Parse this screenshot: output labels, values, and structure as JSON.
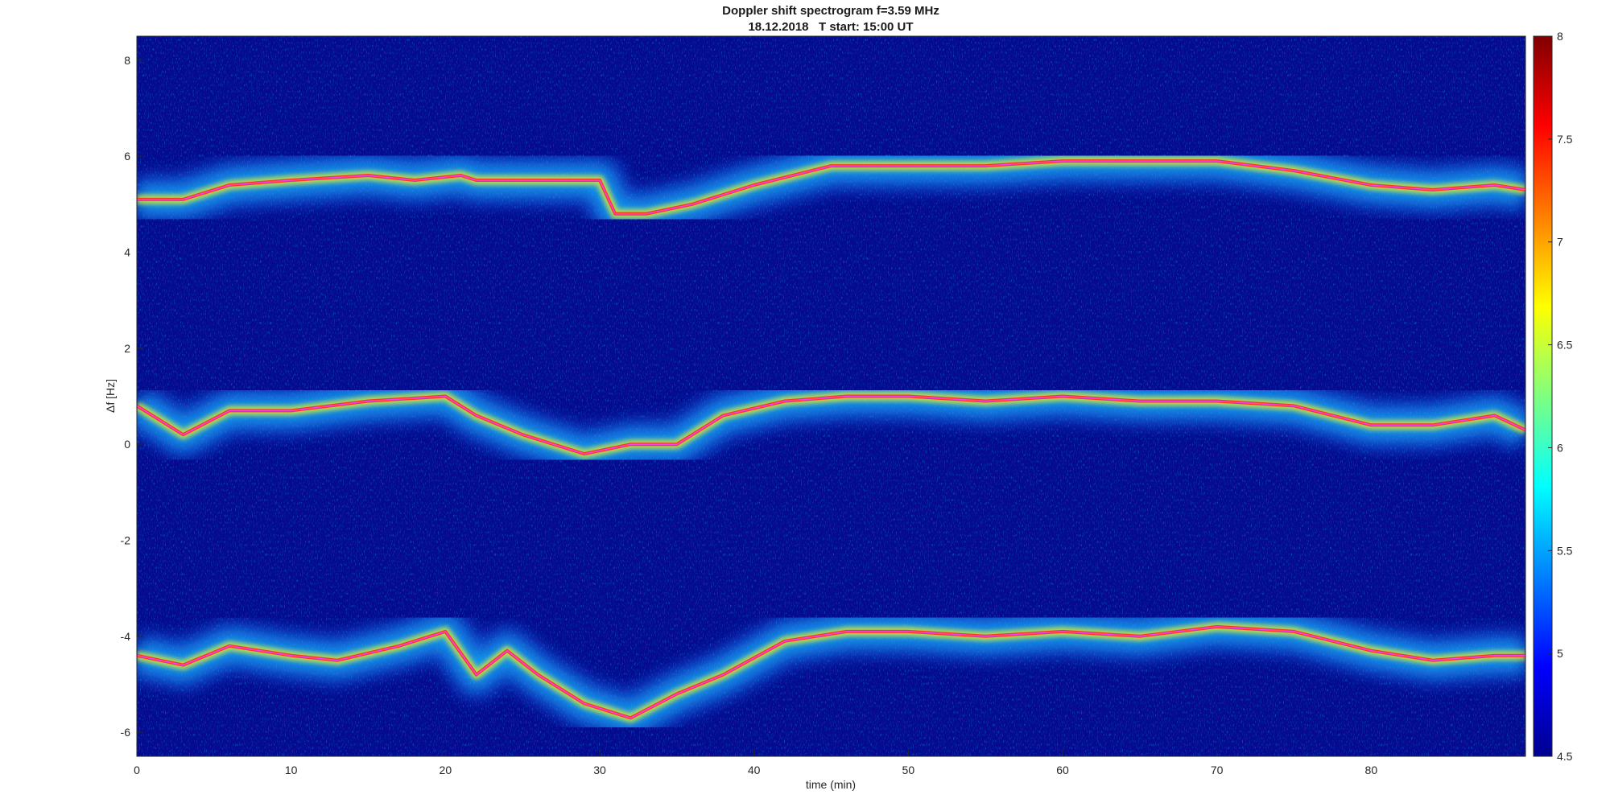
{
  "chart_data": {
    "type": "heatmap",
    "title": "Doppler shift spectrogram f=3.59 MHz",
    "subtitle": "18.12.2018   T start: 15:00 UT",
    "xlabel": "time (min)",
    "ylabel": "Δf [Hz]",
    "xlim": [
      0,
      90
    ],
    "ylim": [
      -6.5,
      8.5
    ],
    "xticks": [
      "0",
      "10",
      "20",
      "30",
      "40",
      "50",
      "60",
      "70",
      "80"
    ],
    "yticks": [
      "8",
      "6",
      "4",
      "2",
      "0",
      "-2",
      "-4",
      "-6"
    ],
    "colorbar": {
      "range": [
        4.5,
        8
      ],
      "ticks": [
        "8",
        "7.5",
        "7",
        "6.5",
        "6",
        "5.5",
        "5",
        "4.5"
      ],
      "colormap": "jet"
    },
    "grid": false,
    "series": [
      {
        "x": [
          0,
          3,
          6,
          10,
          15,
          18,
          21,
          22,
          25,
          28,
          30,
          31,
          33,
          36,
          40,
          45,
          50,
          55,
          60,
          65,
          70,
          75,
          80,
          84,
          88,
          90
        ],
        "values": [
          5.1,
          5.1,
          5.4,
          5.5,
          5.6,
          5.5,
          5.6,
          5.5,
          5.5,
          5.5,
          5.5,
          4.8,
          4.8,
          5.0,
          5.4,
          5.8,
          5.8,
          5.8,
          5.9,
          5.9,
          5.9,
          5.7,
          5.4,
          5.3,
          5.4,
          5.3
        ]
      },
      {
        "x": [
          0,
          3,
          6,
          10,
          15,
          20,
          22,
          25,
          29,
          32,
          35,
          38,
          42,
          46,
          50,
          55,
          60,
          65,
          70,
          75,
          80,
          84,
          88,
          90
        ],
        "values": [
          0.8,
          0.2,
          0.7,
          0.7,
          0.9,
          1.0,
          0.6,
          0.2,
          -0.2,
          0.0,
          0.0,
          0.6,
          0.9,
          1.0,
          1.0,
          0.9,
          1.0,
          0.9,
          0.9,
          0.8,
          0.4,
          0.4,
          0.6,
          0.3
        ]
      },
      {
        "x": [
          0,
          3,
          6,
          10,
          13,
          17,
          20,
          22,
          24,
          26,
          29,
          32,
          35,
          38,
          42,
          46,
          50,
          55,
          60,
          65,
          70,
          75,
          80,
          84,
          88,
          90
        ],
        "values": [
          -4.4,
          -4.6,
          -4.2,
          -4.4,
          -4.5,
          -4.2,
          -3.9,
          -4.8,
          -4.3,
          -4.8,
          -5.4,
          -5.7,
          -5.2,
          -4.8,
          -4.1,
          -3.9,
          -3.9,
          -4.0,
          -3.9,
          -4.0,
          -3.8,
          -3.9,
          -4.3,
          -4.5,
          -4.4,
          -4.4
        ]
      }
    ]
  }
}
